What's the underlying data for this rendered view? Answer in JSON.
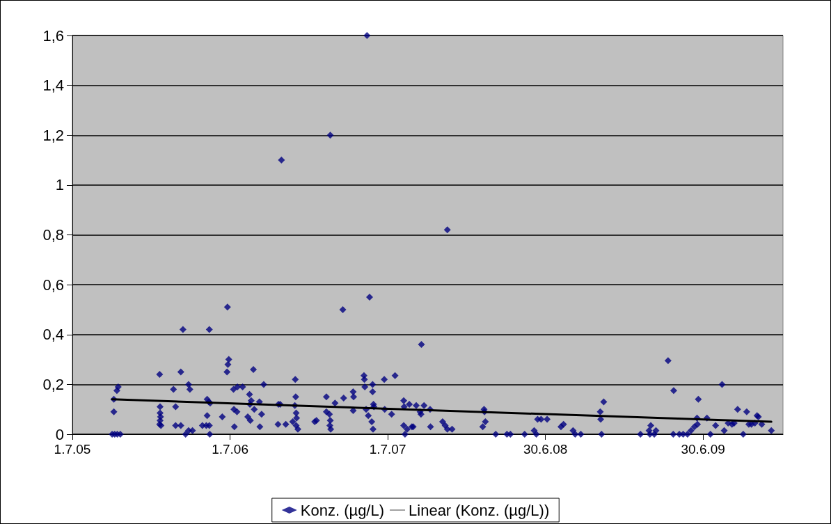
{
  "chart_data": {
    "type": "scatter",
    "marker": "diamond",
    "grid": "y",
    "legend": "bottom",
    "xlim": [
      "2005-07-01",
      "2010-01-01"
    ],
    "xticks": [
      {
        "value": "2005-07-01",
        "label": "1.7.05"
      },
      {
        "value": "2006-07-01",
        "label": "1.7.06"
      },
      {
        "value": "2007-07-01",
        "label": "1.7.07"
      },
      {
        "value": "2008-06-30",
        "label": "30.6.08"
      },
      {
        "value": "2009-06-30",
        "label": "30.6.09"
      }
    ],
    "ylim": [
      0,
      1.6
    ],
    "yticks": [
      0,
      {
        "value": 0.2,
        "label": "0,2"
      },
      {
        "value": 0.4,
        "label": "0,4"
      },
      {
        "value": 0.6,
        "label": "0,6"
      },
      {
        "value": 0.8,
        "label": "0,8"
      },
      1,
      {
        "value": 1.2,
        "label": "1,2"
      },
      {
        "value": 1.4,
        "label": "1,4"
      },
      {
        "value": 1.6,
        "label": "1,6"
      }
    ],
    "series": [
      {
        "name": "Konz. (µg/L)",
        "color": "#000080",
        "x": [
          "2005-10-05",
          "2005-10-05",
          "2005-10-01",
          "2005-10-07",
          "2005-10-12",
          "2005-10-15",
          "2005-10-13",
          "2005-10-20",
          "2006-01-19",
          "2006-01-20",
          "2006-01-20",
          "2006-01-21",
          "2006-01-20",
          "2006-01-19",
          "2006-01-22",
          "2006-02-20",
          "2006-02-25",
          "2006-02-25",
          "2006-03-09",
          "2006-03-09",
          "2006-03-14",
          "2006-03-20",
          "2006-03-27",
          "2006-03-30",
          "2006-03-27",
          "2006-04-05",
          "2006-04-28",
          "2006-05-09",
          "2006-05-09",
          "2006-05-13",
          "2006-05-16",
          "2006-05-07",
          "2006-05-14",
          "2006-05-14",
          "2006-05-15",
          "2006-06-13",
          "2006-06-25",
          "2006-06-24",
          "2006-06-26",
          "2006-06-28",
          "2006-07-09",
          "2006-07-10",
          "2006-07-11",
          "2006-07-17",
          "2006-07-18",
          "2006-07-30",
          "2006-08-11",
          "2006-08-15",
          "2006-08-16",
          "2006-08-17",
          "2006-08-19",
          "2006-08-24",
          "2006-08-26",
          "2006-09-07",
          "2006-09-08",
          "2006-09-12",
          "2006-09-17",
          "2006-10-20",
          "2006-10-21",
          "2006-10-25",
          "2006-10-28",
          "2006-11-07",
          "2006-11-23",
          "2006-11-28",
          "2006-11-29",
          "2006-11-30",
          "2006-12-01",
          "2006-12-02",
          "2006-12-01",
          "2006-12-05",
          "2007-01-13",
          "2007-01-17",
          "2007-02-09",
          "2007-02-09",
          "2007-02-16",
          "2007-02-18",
          "2007-02-17",
          "2007-02-19",
          "2007-02-18",
          "2007-03-01",
          "2007-03-19",
          "2007-03-21",
          "2007-04-12",
          "2007-04-12",
          "2007-04-13",
          "2007-05-07",
          "2007-05-08",
          "2007-05-09",
          "2007-05-12",
          "2007-05-14",
          "2007-05-17",
          "2007-05-20",
          "2007-05-25",
          "2007-05-27",
          "2007-05-27",
          "2007-05-28",
          "2007-05-29",
          "2007-05-30",
          "2007-06-23",
          "2007-06-24",
          "2007-07-10",
          "2007-07-18",
          "2007-08-07",
          "2007-08-08",
          "2007-08-07",
          "2007-08-10",
          "2007-08-15",
          "2007-08-20",
          "2007-08-26",
          "2007-08-29",
          "2007-09-05",
          "2007-09-14",
          "2007-09-16",
          "2007-09-17",
          "2007-09-23",
          "2007-10-07",
          "2007-10-08",
          "2007-11-05",
          "2007-11-11",
          "2007-11-16",
          "2007-11-16",
          "2007-11-27",
          "2008-02-09",
          "2008-02-10",
          "2008-02-12",
          "2008-02-06",
          "2008-03-07",
          "2008-04-02",
          "2008-04-10",
          "2008-05-13",
          "2008-06-04",
          "2008-06-09",
          "2008-06-12",
          "2008-06-20",
          "2008-07-04",
          "2008-08-05",
          "2008-08-11",
          "2008-09-02",
          "2008-09-07",
          "2008-09-20",
          "2008-11-04",
          "2008-11-05",
          "2008-11-12",
          "2008-11-07",
          "2009-02-05",
          "2009-02-27",
          "2009-03-01",
          "2009-02-25",
          "2009-03-13",
          "2009-03-09",
          "2009-04-10",
          "2009-04-23",
          "2009-04-22",
          "2009-05-06",
          "2009-05-15",
          "2009-05-25",
          "2009-06-02",
          "2009-06-10",
          "2009-06-16",
          "2009-06-17",
          "2009-06-19",
          "2009-07-09",
          "2009-07-17",
          "2009-07-29",
          "2009-08-13",
          "2009-08-18",
          "2009-08-27",
          "2009-09-05",
          "2009-09-10",
          "2009-09-18",
          "2009-10-01",
          "2009-10-09",
          "2009-10-14",
          "2009-10-20",
          "2009-10-28",
          "2009-11-02",
          "2009-11-05",
          "2009-11-13",
          "2009-12-05"
        ],
        "values": [
          0.14,
          0.09,
          0,
          0,
          0.175,
          0.19,
          0,
          0,
          0.24,
          0.11,
          0.085,
          0.07,
          0.055,
          0.04,
          0.035,
          0.18,
          0.11,
          0.035,
          0.25,
          0.035,
          0.42,
          0,
          0.2,
          0.18,
          0.015,
          0.015,
          0.035,
          0.075,
          0.14,
          0.13,
          0.125,
          0.035,
          0.035,
          0.42,
          0,
          0.07,
          0.51,
          0.25,
          0.28,
          0.3,
          0.18,
          0.1,
          0.03,
          0.09,
          0.19,
          0.19,
          0.07,
          0.16,
          0.12,
          0.055,
          0.135,
          0.26,
          0.1,
          0.13,
          0.03,
          0.08,
          0.2,
          0.04,
          0.12,
          0.12,
          1.1,
          0.04,
          0.05,
          0.115,
          0.22,
          0.15,
          0.085,
          0.065,
          0.035,
          0.02,
          0.05,
          0.055,
          0.15,
          0.09,
          0.08,
          0.055,
          0.035,
          0.02,
          1.2,
          0.125,
          0.5,
          0.145,
          0.095,
          0.17,
          0.15,
          0.235,
          0.22,
          0.19,
          0.1,
          1.6,
          0.075,
          0.55,
          0.05,
          0.2,
          0.17,
          0.02,
          0.12,
          0.11,
          0.22,
          0.1,
          0.08,
          0.235,
          0.135,
          0.11,
          0.035,
          0,
          0.02,
          0.12,
          0.03,
          0.03,
          0.115,
          0.09,
          0.08,
          0.36,
          0.115,
          0.1,
          0.03,
          0.05,
          0.035,
          0.82,
          0.02,
          0.02,
          0.1,
          0.09,
          0.05,
          0.03,
          0,
          0,
          0,
          0,
          0.015,
          0,
          0.06,
          0.06,
          0.06,
          0.03,
          0.04,
          0.015,
          0,
          0,
          0.09,
          0.06,
          0.13,
          0,
          0,
          0,
          0.035,
          0.015,
          0.015,
          0,
          0.295,
          0.175,
          0,
          0,
          0,
          0,
          0.015,
          0.03,
          0.065,
          0.04,
          0.14,
          0.065,
          0,
          0.035,
          0.2,
          0.015,
          0.045,
          0.04,
          0.045,
          0.1,
          0,
          0.09,
          0.04,
          0.04,
          0.045,
          0.075,
          0.07,
          0.04,
          0.015
        ]
      },
      {
        "name": "Linear (Konz. (µg/L))",
        "type": "line",
        "color": "#000000",
        "marker": "none",
        "line_style": "solid",
        "x": [
          "2005-10-01",
          "2009-12-05"
        ],
        "values": [
          0.14,
          0.05
        ]
      }
    ]
  }
}
